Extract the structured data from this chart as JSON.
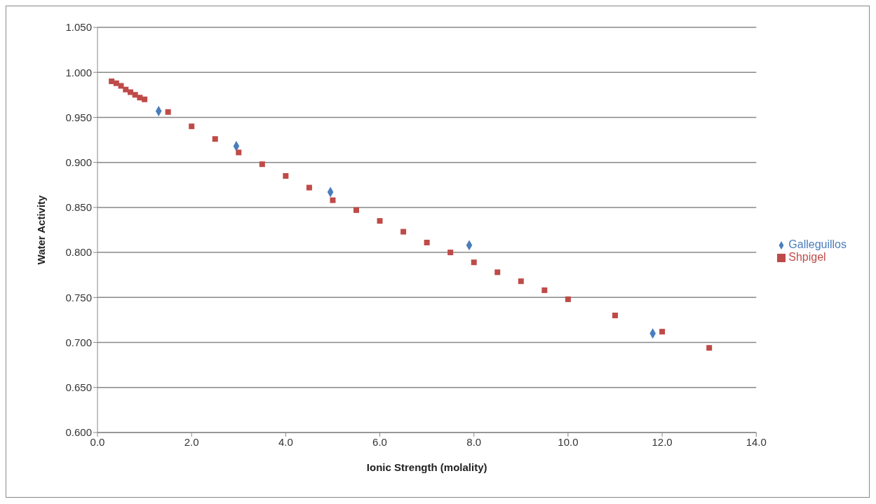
{
  "chart_data": {
    "type": "scatter",
    "xlabel": "Ionic Strength (molality)",
    "ylabel": "Water Activity",
    "xlim": [
      0,
      14
    ],
    "xticks": [
      {
        "value": 0,
        "label": "0.0"
      },
      {
        "value": 2,
        "label": "2.0"
      },
      {
        "value": 4,
        "label": "4.0"
      },
      {
        "value": 6,
        "label": "6.0"
      },
      {
        "value": 8,
        "label": "8.0"
      },
      {
        "value": 10,
        "label": "10.0"
      },
      {
        "value": 12,
        "label": "12.0"
      },
      {
        "value": 14,
        "label": "14.0"
      }
    ],
    "ylim": [
      0.6,
      1.05
    ],
    "yticks": [
      {
        "value": 0.6,
        "label": "0.600"
      },
      {
        "value": 0.65,
        "label": "0.650"
      },
      {
        "value": 0.7,
        "label": "0.700"
      },
      {
        "value": 0.75,
        "label": "0.750"
      },
      {
        "value": 0.8,
        "label": "0.800"
      },
      {
        "value": 0.85,
        "label": "0.850"
      },
      {
        "value": 0.9,
        "label": "0.900"
      },
      {
        "value": 0.95,
        "label": "0.950"
      },
      {
        "value": 1.0,
        "label": "1.000"
      },
      {
        "value": 1.05,
        "label": "1.050"
      }
    ],
    "grid": "y",
    "legend": "right",
    "series": [
      {
        "name": "Galleguillos",
        "color": "#4a7ebb",
        "marker": "diamond",
        "x": [
          1.3,
          2.95,
          4.95,
          7.9,
          11.8
        ],
        "values": [
          0.957,
          0.918,
          0.867,
          0.808,
          0.71
        ]
      },
      {
        "name": "Shpigel",
        "color": "#be4b48",
        "marker": "square",
        "x": [
          0.3,
          0.4,
          0.5,
          0.6,
          0.7,
          0.8,
          0.9,
          1.0,
          1.5,
          2,
          2.5,
          3,
          3.5,
          4,
          4.5,
          5,
          5.5,
          6,
          6.5,
          7,
          7.5,
          8,
          8.5,
          9,
          9.5,
          10,
          11,
          12,
          13
        ],
        "values": [
          0.99,
          0.988,
          0.985,
          0.981,
          0.978,
          0.975,
          0.972,
          0.97,
          0.956,
          0.94,
          0.926,
          0.911,
          0.898,
          0.885,
          0.872,
          0.858,
          0.847,
          0.835,
          0.823,
          0.811,
          0.8,
          0.789,
          0.778,
          0.768,
          0.758,
          0.748,
          0.73,
          0.712,
          0.694
        ]
      }
    ]
  }
}
